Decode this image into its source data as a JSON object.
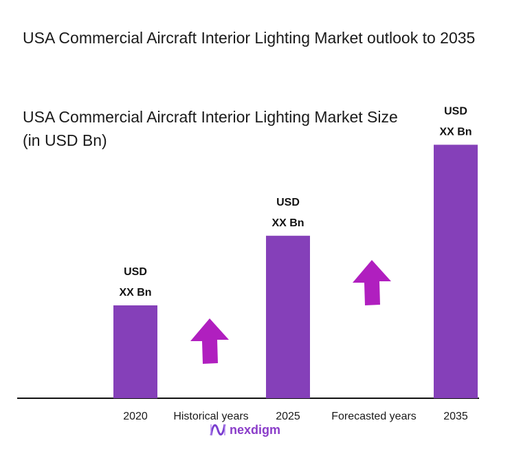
{
  "title": "USA Commercial Aircraft Interior Lighting Market outlook to 2035",
  "logo_text": "nexdigm",
  "chart_data": {
    "type": "bar",
    "title": "USA Commercial Aircraft Interior Lighting Market Size (in USD Bn)",
    "categories": [
      "2020",
      "2025",
      "2035"
    ],
    "values": [
      1.0,
      1.75,
      2.73
    ],
    "data_labels": [
      [
        "USD",
        "XX Bn"
      ],
      [
        "USD",
        "XX Bn"
      ],
      [
        "USD",
        "XX Bn"
      ]
    ],
    "period_labels": [
      "Historical years",
      "Forecasted years"
    ],
    "annotations": [
      "up-arrow",
      "up-arrow"
    ],
    "grid": false,
    "legend": "none",
    "colors": {
      "bar": "#8540b9",
      "arrow": "#b01fbf",
      "axis": "#111111"
    }
  }
}
